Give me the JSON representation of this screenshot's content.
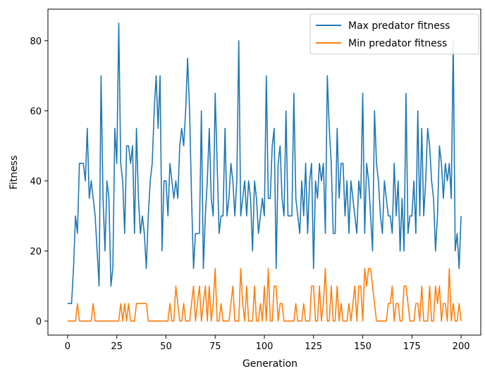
{
  "chart_data": {
    "type": "line",
    "title": "",
    "xlabel": "Generation",
    "ylabel": "Fitness",
    "xlim": [
      -10,
      210
    ],
    "ylim": [
      -4,
      89
    ],
    "xticks": [
      0,
      25,
      50,
      75,
      100,
      125,
      150,
      175,
      200
    ],
    "yticks": [
      0,
      20,
      40,
      60,
      80
    ],
    "legend_position": "top-right",
    "grid": false,
    "series": [
      {
        "name": "Max predator fitness",
        "color": "#1f77b4",
        "x": [
          0,
          1,
          2,
          3,
          4,
          5,
          6,
          7,
          8,
          9,
          10,
          11,
          12,
          13,
          14,
          15,
          16,
          17,
          18,
          19,
          20,
          21,
          22,
          23,
          24,
          25,
          26,
          27,
          28,
          29,
          30,
          31,
          32,
          33,
          34,
          35,
          36,
          37,
          38,
          39,
          40,
          41,
          42,
          43,
          44,
          45,
          46,
          47,
          48,
          49,
          50,
          51,
          52,
          53,
          54,
          55,
          56,
          57,
          58,
          59,
          60,
          61,
          62,
          63,
          64,
          65,
          66,
          67,
          68,
          69,
          70,
          71,
          72,
          73,
          74,
          75,
          76,
          77,
          78,
          79,
          80,
          81,
          82,
          83,
          84,
          85,
          86,
          87,
          88,
          89,
          90,
          91,
          92,
          93,
          94,
          95,
          96,
          97,
          98,
          99,
          100,
          101,
          102,
          103,
          104,
          105,
          106,
          107,
          108,
          109,
          110,
          111,
          112,
          113,
          114,
          115,
          116,
          117,
          118,
          119,
          120,
          121,
          122,
          123,
          124,
          125,
          126,
          127,
          128,
          129,
          130,
          131,
          132,
          133,
          134,
          135,
          136,
          137,
          138,
          139,
          140,
          141,
          142,
          143,
          144,
          145,
          146,
          147,
          148,
          149,
          150,
          151,
          152,
          153,
          154,
          155,
          156,
          157,
          158,
          159,
          160,
          161,
          162,
          163,
          164,
          165,
          166,
          167,
          168,
          169,
          170,
          171,
          172,
          173,
          174,
          175,
          176,
          177,
          178,
          179,
          180,
          181,
          182,
          183,
          184,
          185,
          186,
          187,
          188,
          189,
          190,
          191,
          192,
          193,
          194,
          195,
          196,
          197,
          198,
          199,
          200
        ],
        "values": [
          5,
          5,
          5,
          15,
          30,
          25,
          45,
          45,
          45,
          40,
          55,
          35,
          40,
          35,
          30,
          20,
          10,
          70,
          35,
          20,
          40,
          35,
          10,
          15,
          55,
          45,
          85,
          45,
          40,
          25,
          50,
          50,
          45,
          50,
          25,
          55,
          35,
          25,
          30,
          25,
          15,
          30,
          40,
          45,
          60,
          70,
          55,
          70,
          20,
          40,
          40,
          30,
          45,
          40,
          35,
          40,
          35,
          50,
          55,
          50,
          60,
          75,
          60,
          35,
          15,
          25,
          25,
          25,
          60,
          15,
          30,
          40,
          55,
          35,
          30,
          65,
          45,
          25,
          30,
          30,
          55,
          30,
          35,
          45,
          40,
          30,
          40,
          80,
          30,
          35,
          40,
          30,
          40,
          35,
          20,
          40,
          35,
          25,
          30,
          35,
          30,
          70,
          35,
          35,
          50,
          55,
          15,
          45,
          50,
          35,
          30,
          60,
          30,
          30,
          30,
          65,
          35,
          30,
          25,
          40,
          30,
          45,
          25,
          40,
          45,
          15,
          40,
          35,
          45,
          40,
          45,
          25,
          70,
          55,
          45,
          25,
          25,
          55,
          35,
          45,
          45,
          30,
          40,
          25,
          40,
          35,
          30,
          25,
          40,
          35,
          65,
          25,
          45,
          40,
          30,
          20,
          60,
          45,
          40,
          30,
          25,
          40,
          35,
          30,
          30,
          25,
          45,
          30,
          40,
          20,
          35,
          20,
          65,
          25,
          30,
          30,
          40,
          25,
          60,
          30,
          55,
          30,
          40,
          55,
          50,
          40,
          35,
          20,
          30,
          50,
          45,
          35,
          45,
          40,
          45,
          35,
          80,
          20,
          25,
          15,
          30
        ]
      },
      {
        "name": "Min predator fitness",
        "color": "#ff7f0e",
        "x": [
          0,
          1,
          2,
          3,
          4,
          5,
          6,
          7,
          8,
          9,
          10,
          11,
          12,
          13,
          14,
          15,
          16,
          17,
          18,
          19,
          20,
          21,
          22,
          23,
          24,
          25,
          26,
          27,
          28,
          29,
          30,
          31,
          32,
          33,
          34,
          35,
          36,
          37,
          38,
          39,
          40,
          41,
          42,
          43,
          44,
          45,
          46,
          47,
          48,
          49,
          50,
          51,
          52,
          53,
          54,
          55,
          56,
          57,
          58,
          59,
          60,
          61,
          62,
          63,
          64,
          65,
          66,
          67,
          68,
          69,
          70,
          71,
          72,
          73,
          74,
          75,
          76,
          77,
          78,
          79,
          80,
          81,
          82,
          83,
          84,
          85,
          86,
          87,
          88,
          89,
          90,
          91,
          92,
          93,
          94,
          95,
          96,
          97,
          98,
          99,
          100,
          101,
          102,
          103,
          104,
          105,
          106,
          107,
          108,
          109,
          110,
          111,
          112,
          113,
          114,
          115,
          116,
          117,
          118,
          119,
          120,
          121,
          122,
          123,
          124,
          125,
          126,
          127,
          128,
          129,
          130,
          131,
          132,
          133,
          134,
          135,
          136,
          137,
          138,
          139,
          140,
          141,
          142,
          143,
          144,
          145,
          146,
          147,
          148,
          149,
          150,
          151,
          152,
          153,
          154,
          155,
          156,
          157,
          158,
          159,
          160,
          161,
          162,
          163,
          164,
          165,
          166,
          167,
          168,
          169,
          170,
          171,
          172,
          173,
          174,
          175,
          176,
          177,
          178,
          179,
          180,
          181,
          182,
          183,
          184,
          185,
          186,
          187,
          188,
          189,
          190,
          191,
          192,
          193,
          194,
          195,
          196,
          197,
          198,
          199,
          200
        ],
        "values": [
          0,
          0,
          0,
          0,
          0,
          5,
          0,
          0,
          0,
          0,
          0,
          0,
          0,
          5,
          0,
          0,
          0,
          0,
          0,
          0,
          0,
          0,
          0,
          0,
          0,
          0,
          0,
          5,
          0,
          5,
          0,
          5,
          0,
          0,
          0,
          5,
          5,
          5,
          5,
          5,
          5,
          0,
          0,
          0,
          0,
          0,
          0,
          0,
          0,
          0,
          0,
          0,
          5,
          0,
          0,
          10,
          5,
          0,
          0,
          5,
          0,
          0,
          0,
          5,
          10,
          0,
          5,
          10,
          0,
          5,
          10,
          0,
          10,
          0,
          5,
          15,
          0,
          0,
          5,
          0,
          0,
          0,
          0,
          5,
          10,
          0,
          0,
          0,
          15,
          5,
          0,
          10,
          0,
          0,
          0,
          10,
          0,
          0,
          5,
          0,
          10,
          0,
          15,
          0,
          0,
          10,
          10,
          0,
          5,
          5,
          0,
          0,
          0,
          0,
          0,
          0,
          5,
          0,
          0,
          0,
          5,
          0,
          0,
          0,
          10,
          10,
          0,
          0,
          10,
          0,
          5,
          15,
          0,
          0,
          10,
          0,
          0,
          10,
          0,
          5,
          0,
          0,
          0,
          5,
          0,
          5,
          10,
          0,
          10,
          10,
          0,
          15,
          10,
          15,
          15,
          10,
          5,
          0,
          0,
          0,
          0,
          0,
          0,
          5,
          5,
          10,
          0,
          5,
          5,
          0,
          0,
          10,
          10,
          5,
          0,
          0,
          0,
          5,
          5,
          0,
          10,
          0,
          0,
          0,
          10,
          0,
          0,
          10,
          5,
          10,
          0,
          5,
          5,
          0,
          15,
          0,
          5,
          0,
          0,
          5,
          0
        ]
      }
    ]
  }
}
